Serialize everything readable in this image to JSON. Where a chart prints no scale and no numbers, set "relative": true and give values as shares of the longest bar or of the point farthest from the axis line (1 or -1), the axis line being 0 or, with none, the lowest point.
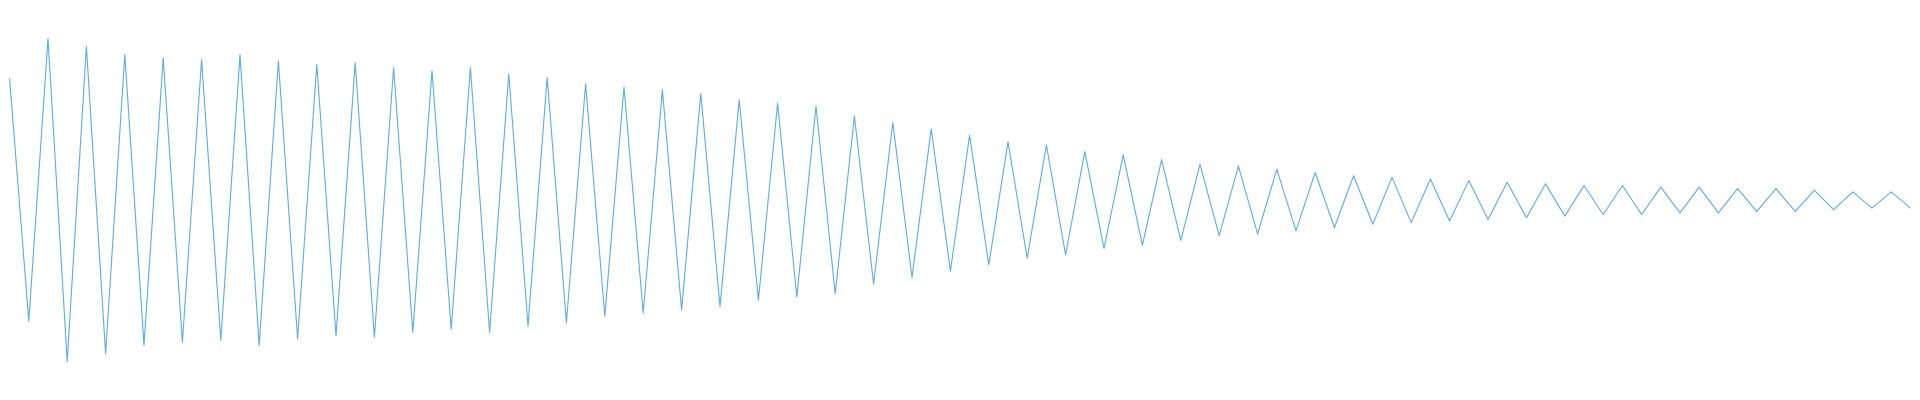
{
  "chart_data": {
    "type": "line",
    "relative": true,
    "marker": "none",
    "line_style": "solid",
    "categories": [
      null,
      null,
      null,
      null,
      null,
      null,
      null,
      null,
      null,
      null,
      null,
      null,
      null,
      null,
      null,
      null,
      null,
      null,
      null,
      null,
      null,
      null,
      null,
      null,
      null,
      null,
      null,
      null,
      null,
      null,
      null,
      null,
      null,
      null,
      null,
      null,
      null,
      null,
      null,
      null,
      null,
      null,
      null,
      null,
      null,
      null,
      null,
      null,
      null,
      null,
      null,
      null,
      null,
      null,
      null,
      null,
      null,
      null,
      null,
      null,
      null,
      null,
      null,
      null,
      null,
      null,
      null,
      null,
      null,
      null,
      null,
      null,
      null,
      null,
      null,
      null,
      null,
      null,
      null,
      null,
      null,
      null,
      null,
      null,
      null,
      null,
      null,
      null,
      null,
      null,
      null,
      null,
      null,
      null,
      null,
      null,
      null,
      null,
      null,
      null
    ],
    "series": [
      {
        "color": "#5dade2",
        "values": [
          0.875,
          0.125,
          1,
          0,
          0.975,
          0.025,
          0.95,
          0.05,
          0.94,
          0.06,
          0.935,
          0.065,
          0.95,
          0.05,
          0.93,
          0.07,
          0.92,
          0.08,
          0.925,
          0.075,
          0.91,
          0.09,
          0.9,
          0.1,
          0.91,
          0.09,
          0.89,
          0.11,
          0.88,
          0.12,
          0.86,
          0.14,
          0.85,
          0.15,
          0.84,
          0.16,
          0.83,
          0.17,
          0.81,
          0.19,
          0.8,
          0.2,
          0.79,
          0.21,
          0.76,
          0.24,
          0.74,
          0.26,
          0.72,
          0.28,
          0.7,
          0.3,
          0.68,
          0.32,
          0.67,
          0.33,
          0.65,
          0.35,
          0.64,
          0.36,
          0.625,
          0.375,
          0.61,
          0.39,
          0.605,
          0.395,
          0.595,
          0.405,
          0.585,
          0.415,
          0.575,
          0.425,
          0.57,
          0.43,
          0.565,
          0.435,
          0.56,
          0.44,
          0.555,
          0.445,
          0.55,
          0.45,
          0.545,
          0.455,
          0.545,
          0.455,
          0.54,
          0.46,
          0.54,
          0.46,
          0.535,
          0.465,
          0.535,
          0.465,
          0.53,
          0.47,
          0.525,
          0.475,
          0.525,
          0.475
        ]
      }
    ]
  }
}
